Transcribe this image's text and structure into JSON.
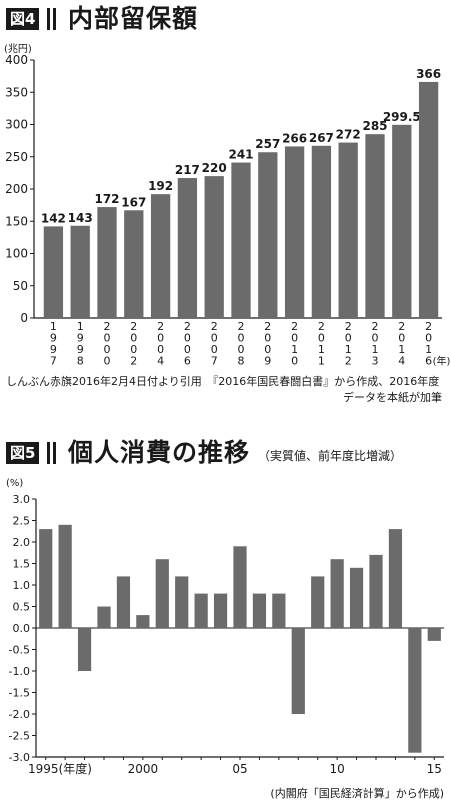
{
  "fig4": {
    "badge": "図4",
    "title": "内部留保額",
    "unit": "(兆円)",
    "source_lines": [
      "しんぶん赤旗2016年2月4日付より引用　『2016年国民春闘白書』から作成、2016年度",
      "データを本紙が加筆"
    ]
  },
  "fig5": {
    "badge": "図5",
    "title": "個人消費の推移",
    "subtitle": "（実質値、前年度比増減）",
    "unit": "(%)",
    "source": "(内閣府「国民経済計算」から作成)"
  },
  "colors": {
    "bar": "#6b6b6b",
    "axis": "#1a1a1a",
    "badge_bg": "#1a1a1a"
  },
  "chart_data": [
    {
      "type": "bar",
      "title": "内部留保額",
      "ylabel": "(兆円)",
      "xlabel": "",
      "ylim": [
        0,
        400
      ],
      "yticks": [
        0,
        50,
        100,
        150,
        200,
        250,
        300,
        350,
        400
      ],
      "categories": [
        "1997",
        "1998",
        "2000",
        "2002",
        "2004",
        "2006",
        "2007",
        "2008",
        "2009",
        "2010",
        "2011",
        "2012",
        "2013",
        "2014",
        "2016"
      ],
      "values": [
        142,
        143,
        172,
        167,
        192,
        217,
        220,
        241,
        257,
        266,
        267,
        272,
        285,
        299.5,
        366
      ],
      "data_labels": [
        "142",
        "143",
        "172",
        "167",
        "192",
        "217",
        "220",
        "241",
        "257",
        "266",
        "267",
        "272",
        "285",
        "299.5",
        "366"
      ],
      "x_tick_labels": [
        "1\n9\n9\n7",
        "1\n9\n9\n8",
        "2\n0\n0\n0",
        "2\n0\n0\n2",
        "2\n0\n0\n4",
        "2\n0\n0\n6",
        "2\n0\n0\n7",
        "2\n0\n0\n8",
        "2\n0\n0\n9",
        "2\n0\n1\n0",
        "2\n0\n1\n1",
        "2\n0\n1\n2",
        "2\n0\n1\n3",
        "2\n0\n1\n4",
        "2\n0\n1\n6"
      ],
      "x_unit": "(年)",
      "grid": false
    },
    {
      "type": "bar",
      "title": "個人消費の推移",
      "ylabel": "(%)",
      "xlabel": "",
      "ylim": [
        -3.0,
        3.0
      ],
      "yticks": [
        "3.0",
        "2.5",
        "2.0",
        "1.5",
        "1.0",
        "0.5",
        "0.0",
        "-0.5",
        "-1.0",
        "-1.5",
        "-2.0",
        "-2.5",
        "-3.0"
      ],
      "categories": [
        "1995",
        "1996",
        "1997",
        "1998",
        "1999",
        "2000",
        "2001",
        "2002",
        "2003",
        "2004",
        "2005",
        "2006",
        "2007",
        "2008",
        "2009",
        "2010",
        "2011",
        "2012",
        "2013",
        "2014",
        "2015"
      ],
      "values": [
        2.3,
        2.4,
        -1.0,
        0.5,
        1.2,
        0.3,
        1.6,
        1.2,
        0.8,
        0.8,
        1.9,
        0.8,
        0.8,
        -2.0,
        1.2,
        1.6,
        1.4,
        1.7,
        2.3,
        -2.9,
        -0.3
      ],
      "x_tick_labels": [
        {
          "index": 0,
          "text": "1995(年度)"
        },
        {
          "index": 5,
          "text": "2000"
        },
        {
          "index": 10,
          "text": "05"
        },
        {
          "index": 15,
          "text": "10"
        },
        {
          "index": 20,
          "text": "15"
        }
      ],
      "grid": false
    }
  ]
}
